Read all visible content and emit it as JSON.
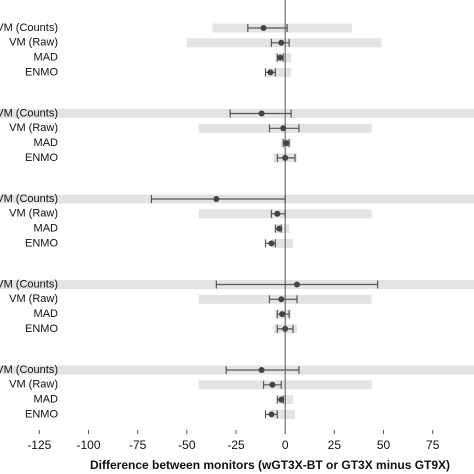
{
  "chart_data": {
    "type": "forest",
    "xlabel": "Difference between monitors (wGT3X-BT or GT3X minus GT9X)",
    "xlim": [
      -145,
      96
    ],
    "xticks": [
      -125,
      -100,
      -75,
      -50,
      -25,
      0,
      25,
      50,
      75
    ],
    "reference_line": 0,
    "groups": [
      {
        "categories": [
          "VM (Counts)",
          "VM (Raw)",
          "MAD",
          "ENMO"
        ],
        "values": [
          -11,
          -2,
          -2.5,
          -7.5
        ],
        "ci_lower": [
          -19,
          -7,
          -4,
          -10
        ],
        "ci_upper": [
          1,
          2,
          -1,
          -5
        ],
        "loa_lower": [
          -37,
          -50,
          -5,
          -9
        ],
        "loa_upper": [
          34,
          49,
          3,
          3
        ]
      },
      {
        "categories": [
          "VM (Counts)",
          "VM (Raw)",
          "MAD",
          "ENMO"
        ],
        "values": [
          -12,
          -1,
          0.5,
          0
        ],
        "ci_lower": [
          -28,
          -8,
          -1,
          -4
        ],
        "ci_upper": [
          3,
          7,
          2,
          5
        ],
        "loa_lower": [
          -150,
          -44,
          -2,
          -6
        ],
        "loa_upper": [
          100,
          44,
          3,
          6
        ]
      },
      {
        "categories": [
          "VM (Counts)",
          "VM (Raw)",
          "MAD",
          "ENMO"
        ],
        "values": [
          -35,
          -4,
          -3,
          -7
        ],
        "ci_lower": [
          -68,
          -7,
          -5,
          -10
        ],
        "ci_upper": [
          0,
          0,
          -2,
          -5
        ],
        "loa_lower": [
          -150,
          -44,
          -5,
          -7
        ],
        "loa_upper": [
          100,
          44,
          2,
          4
        ]
      },
      {
        "categories": [
          "VM (Counts)",
          "VM (Raw)",
          "MAD",
          "ENMO"
        ],
        "values": [
          6,
          -2,
          -1.5,
          0
        ],
        "ci_lower": [
          -35,
          -8,
          -4,
          -4
        ],
        "ci_upper": [
          47,
          6,
          2,
          4
        ],
        "loa_lower": [
          -150,
          -44,
          -5,
          -6
        ],
        "loa_upper": [
          100,
          44,
          3,
          6
        ]
      },
      {
        "categories": [
          "VM (Counts)",
          "VM (Raw)",
          "MAD",
          "ENMO"
        ],
        "values": [
          -12,
          -6.5,
          -2,
          -7
        ],
        "ci_lower": [
          -30,
          -11,
          -4,
          -10
        ],
        "ci_upper": [
          7,
          -2,
          -1,
          -4
        ],
        "loa_lower": [
          -150,
          -44,
          -4,
          -7
        ],
        "loa_upper": [
          100,
          44,
          4,
          5
        ]
      }
    ],
    "loa_color": "#e3e3e3",
    "point_color": "#444444",
    "ci_color": "#555555"
  }
}
